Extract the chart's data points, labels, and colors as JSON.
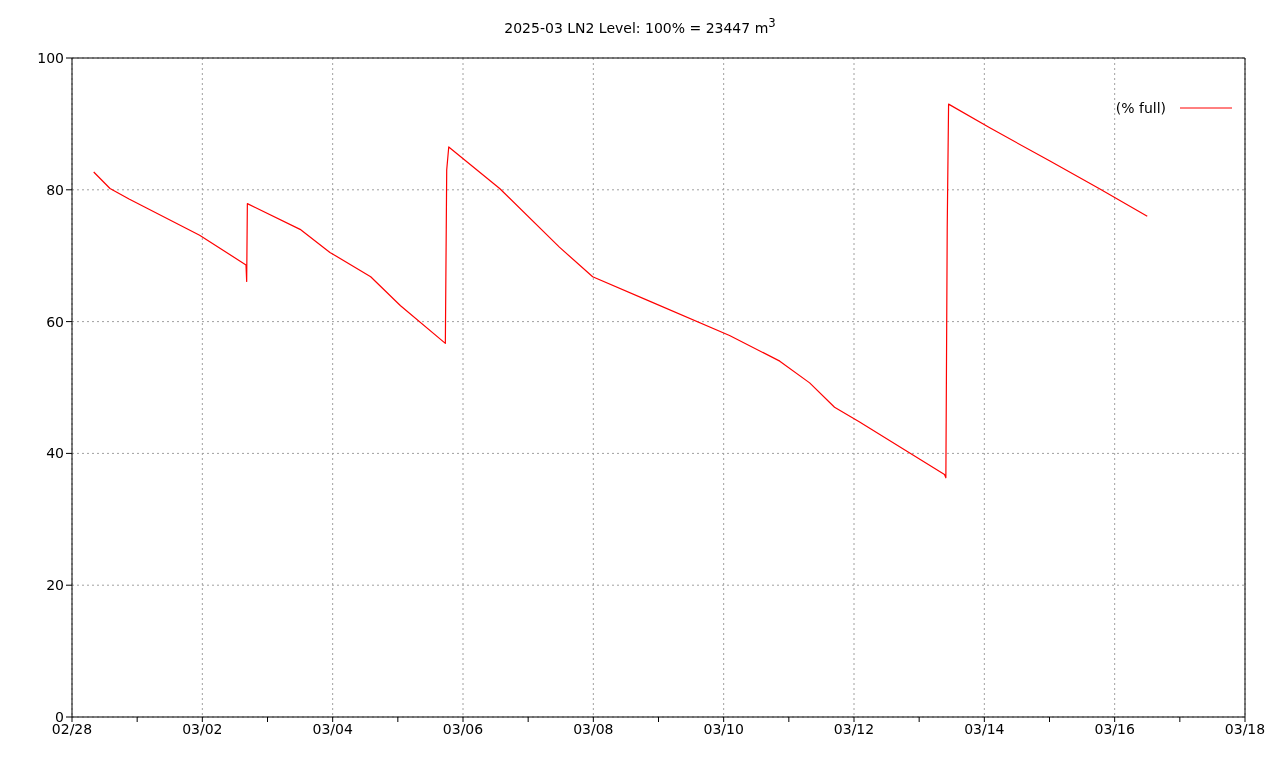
{
  "chart_data": {
    "type": "line",
    "title": "2025-03 LN2 Level: 100% = 23447 m$^{3}$",
    "x": [
      "--02-28T08:00",
      "--02-28T14:00",
      "--02-28T21:00",
      "--03-01T23:00",
      "--03-02T16:05",
      "--03-02T16:20",
      "--03-02T16:35",
      "--03-03T12:00",
      "--03-03T23:00",
      "--03-04T14:00",
      "--03-05T01:00",
      "--03-05T17:30",
      "--03-05T18:00",
      "--03-05T18:45",
      "--03-06T13:30",
      "--03-07T11:30",
      "--03-07T23:45",
      "--03-08T20:40",
      "--03-10T02:10",
      "--03-10T20:40",
      "--03-11T07:40",
      "--03-11T16:50",
      "--03-12T01:55",
      "--03-13T09:20",
      "--03-13T09:50",
      "--03-13T10:20",
      "--03-13T10:50",
      "--03-14T02:00",
      "--03-15T00:00",
      "--03-15T18:15",
      "--03-16T12:00"
    ],
    "series": [
      {
        "name": "(% full)",
        "color": "#ff0000",
        "values": [
          82.7,
          80.2,
          78.6,
          73.1,
          68.6,
          66.1,
          77.9,
          74.0,
          70.5,
          66.8,
          62.4,
          56.7,
          83.0,
          86.5,
          80.2,
          71.3,
          66.8,
          63.1,
          57.9,
          54.0,
          50.7,
          47.0,
          44.8,
          36.8,
          36.3,
          74.3,
          93.0,
          89.4,
          84.4,
          80.2,
          76.0
        ]
      }
    ],
    "xlim": [
      "--02-28",
      "--03-18"
    ],
    "xticks": [
      {
        "value": "--02-28",
        "label": "02/28"
      },
      {
        "value": "--03-01",
        "label": null
      },
      {
        "value": "--03-02",
        "label": "03/02"
      },
      {
        "value": "--03-03",
        "label": null
      },
      {
        "value": "--03-04",
        "label": "03/04"
      },
      {
        "value": "--03-05",
        "label": null
      },
      {
        "value": "--03-06",
        "label": "03/06"
      },
      {
        "value": "--03-07",
        "label": null
      },
      {
        "value": "--03-08",
        "label": "03/08"
      },
      {
        "value": "--03-09",
        "label": null
      },
      {
        "value": "--03-10",
        "label": "03/10"
      },
      {
        "value": "--03-11",
        "label": null
      },
      {
        "value": "--03-12",
        "label": "03/12"
      },
      {
        "value": "--03-13",
        "label": null
      },
      {
        "value": "--03-14",
        "label": "03/14"
      },
      {
        "value": "--03-15",
        "label": null
      },
      {
        "value": "--03-16",
        "label": "03/16"
      },
      {
        "value": "--03-17",
        "label": null
      },
      {
        "value": "--03-18",
        "label": "03/18"
      }
    ],
    "ylim": [
      0,
      100
    ],
    "yticks": [
      0,
      20,
      40,
      60,
      80,
      100
    ],
    "grid": true,
    "legend": "top right",
    "marker": "none",
    "line_style": "solid"
  }
}
